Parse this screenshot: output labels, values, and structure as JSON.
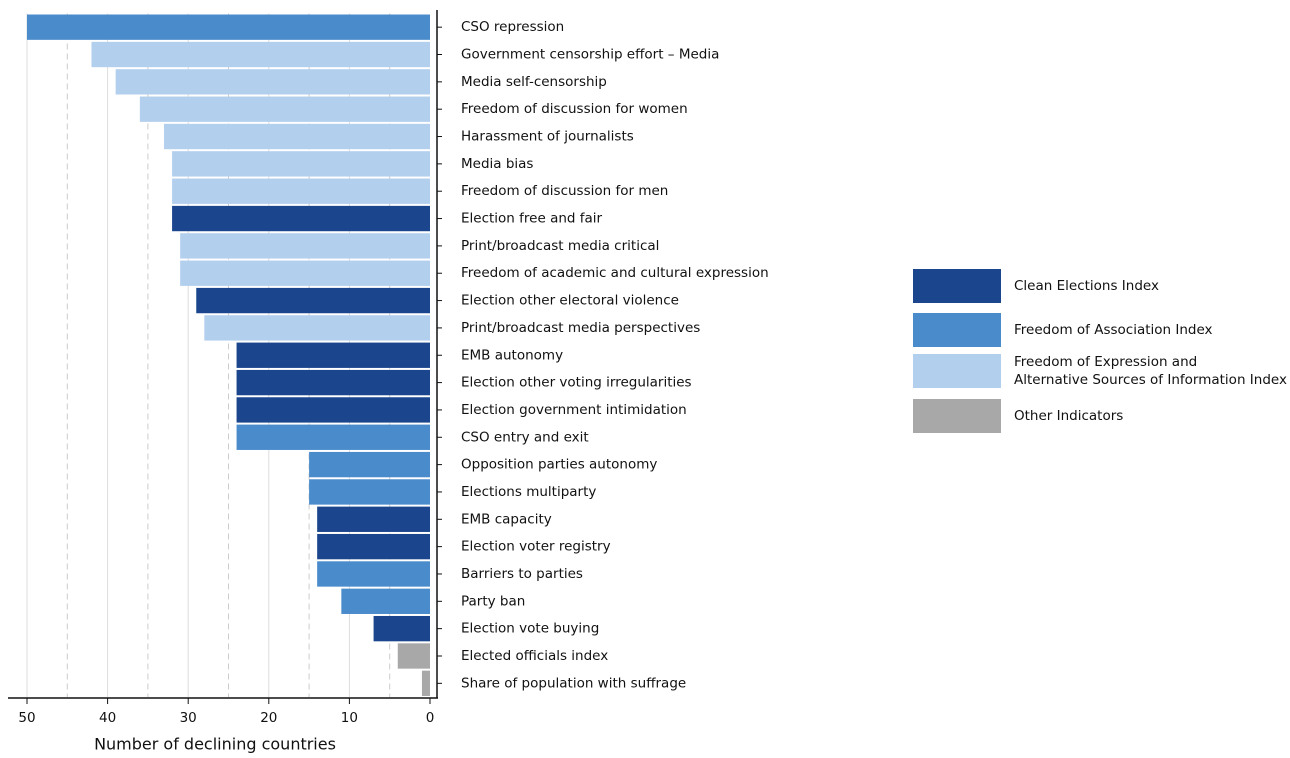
{
  "chart_data": {
    "type": "bar",
    "orientation": "horizontal",
    "xlabel": "Number of declining countries",
    "categories": [
      "CSO repression",
      "Government censorship effort – Media",
      "Media self-censorship",
      "Freedom of discussion for women",
      "Harassment of journalists",
      "Media bias",
      "Freedom of discussion for men",
      "Election free and fair",
      "Print/broadcast media critical",
      "Freedom of academic and cultural expression",
      "Election other electoral violence",
      "Print/broadcast media perspectives",
      "EMB autonomy",
      "Election other voting irregularities",
      "Election government intimidation",
      "CSO entry and exit",
      "Opposition parties autonomy",
      "Elections multiparty",
      "EMB capacity",
      "Election voter registry",
      "Barriers to parties",
      "Party ban",
      "Election vote buying",
      "Elected officials index",
      "Share of population with suffrage"
    ],
    "series": [
      {
        "name": "Clean Elections Index",
        "color": "#1b468d",
        "values": [
          null,
          null,
          null,
          null,
          null,
          null,
          null,
          32,
          null,
          null,
          29,
          null,
          24,
          24,
          24,
          null,
          null,
          null,
          14,
          14,
          null,
          null,
          7,
          null,
          null
        ]
      },
      {
        "name": "Freedom of Association Index",
        "color": "#4a8bcb",
        "values": [
          50,
          null,
          null,
          null,
          null,
          null,
          null,
          null,
          null,
          null,
          null,
          null,
          null,
          null,
          null,
          24,
          15,
          15,
          null,
          null,
          14,
          11,
          null,
          null,
          null
        ]
      },
      {
        "name": "Freedom of Expression and\nAlternative Sources of Information Index",
        "color": "#b3cfee",
        "values": [
          null,
          42,
          39,
          36,
          33,
          32,
          32,
          null,
          31,
          31,
          null,
          28,
          null,
          null,
          null,
          null,
          null,
          null,
          null,
          null,
          null,
          null,
          null,
          null,
          null
        ]
      },
      {
        "name": "Other Indicators",
        "color": "#a8a8a8",
        "values": [
          null,
          null,
          null,
          null,
          null,
          null,
          null,
          null,
          null,
          null,
          null,
          null,
          null,
          null,
          null,
          null,
          null,
          null,
          null,
          null,
          null,
          null,
          null,
          4,
          1
        ]
      }
    ],
    "xlim": [
      50,
      0
    ],
    "xticks": [
      50,
      40,
      30,
      20,
      10,
      0
    ],
    "minor_xticks": [
      45,
      35,
      25,
      15,
      5
    ],
    "grid": true
  }
}
